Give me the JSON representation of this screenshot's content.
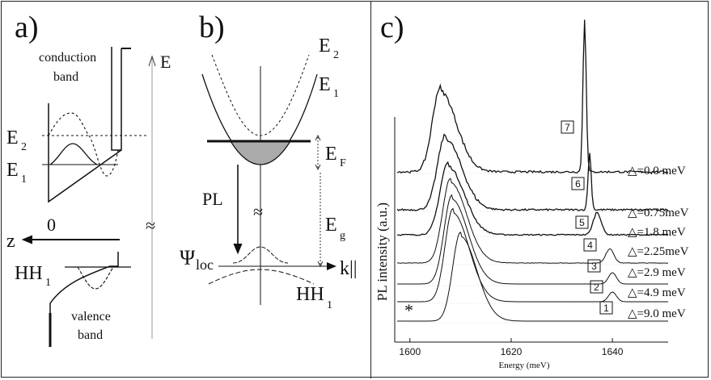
{
  "panel_a": {
    "label": "a)",
    "conduction_band_line1": "conduction",
    "conduction_band_line2": "band",
    "valence_band_line1": "valence",
    "valence_band_line2": "band",
    "E_axis": "E",
    "E2": "E",
    "E2_sub": "2",
    "E1": "E",
    "E1_sub": "1",
    "HH1": "HH",
    "HH1_sub": "1",
    "z_label": "z",
    "zero_label": "0",
    "approx": "≈"
  },
  "panel_b": {
    "label": "b)",
    "E2": "E",
    "E2_sub": "2",
    "E1": "E",
    "E1_sub": "1",
    "EF": "E",
    "EF_sub": "F",
    "Eg": "E",
    "Eg_sub": "g",
    "PL": "PL",
    "approx": "≈",
    "psi": "Ψ",
    "psi_sub": "loc",
    "HH1": "HH",
    "HH1_sub": "1",
    "k_label": "k||"
  },
  "panel_c": {
    "label": "c)",
    "star": "*",
    "chart_data": {
      "type": "line",
      "xlabel": "Energy (meV)",
      "ylabel": "PL intensity (a.u.)",
      "xlim": [
        1597,
        1651
      ],
      "xticks": [
        "1600",
        "1620",
        "1640"
      ],
      "series": [
        {
          "name": "1",
          "delta": "△=9.0 meV",
          "peak_energy": 1610.0,
          "sharp_peak_energy": null
        },
        {
          "name": "2",
          "delta": "△=4.9 meV",
          "peak_energy": 1608.5,
          "sharp_peak_energy": 1640.0
        },
        {
          "name": "3",
          "delta": "△=2.9 meV",
          "peak_energy": 1608.3,
          "sharp_peak_energy": 1640.0
        },
        {
          "name": "4",
          "delta": "△=2.25meV",
          "peak_energy": 1608.0,
          "sharp_peak_energy": 1639.5
        },
        {
          "name": "5",
          "delta": "△=1.8 meV",
          "peak_energy": 1607.5,
          "sharp_peak_energy": 1637.0
        },
        {
          "name": "6",
          "delta": "△=0.75meV",
          "peak_energy": 1607.0,
          "sharp_peak_energy": 1635.5
        },
        {
          "name": "7",
          "delta": "△=0.0 meV",
          "peak_energy": 1606.0,
          "sharp_peak_energy": 1634.5
        }
      ]
    }
  }
}
